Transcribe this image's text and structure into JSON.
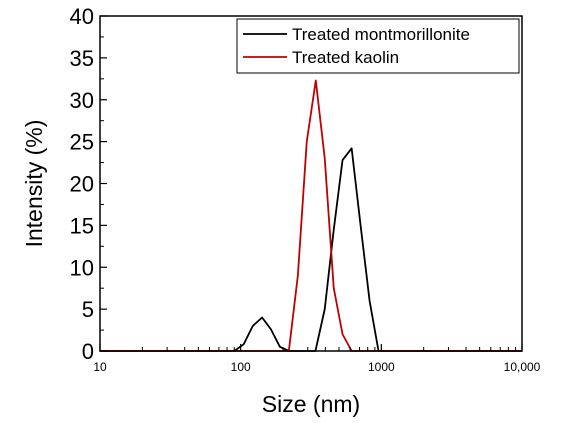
{
  "chart_data": {
    "type": "line",
    "title": "",
    "xlabel": "Size (nm)",
    "ylabel": "Intensity (%)",
    "x_scale": "log",
    "xlim": [
      10,
      10000
    ],
    "ylim": [
      0,
      40
    ],
    "x_ticks": [
      10,
      100,
      1000,
      10000
    ],
    "x_tick_labels": [
      "10",
      "100",
      "1000",
      "10,000"
    ],
    "y_ticks": [
      0,
      5,
      10,
      15,
      20,
      25,
      30,
      35,
      40
    ],
    "y_tick_labels": [
      "0",
      "5",
      "10",
      "15",
      "20",
      "25",
      "30",
      "35",
      "40"
    ],
    "grid": false,
    "legend_position": "top-right",
    "series": [
      {
        "name": "Treated montmorillonite",
        "color": "#000000",
        "points": [
          [
            10,
            0
          ],
          [
            90,
            0
          ],
          [
            105,
            0.8
          ],
          [
            122,
            3.0
          ],
          [
            142,
            4.0
          ],
          [
            164,
            2.6
          ],
          [
            190,
            0.5
          ],
          [
            220,
            0
          ],
          [
            340,
            0
          ],
          [
            396,
            5.0
          ],
          [
            459,
            14.5
          ],
          [
            530,
            22.8
          ],
          [
            615,
            24.2
          ],
          [
            712,
            15.0
          ],
          [
            825,
            6.0
          ],
          [
            955,
            0
          ],
          [
            10000,
            0
          ]
        ]
      },
      {
        "name": "Treated kaolin",
        "color": "#c00000",
        "points": [
          [
            10,
            0
          ],
          [
            220,
            0
          ],
          [
            255,
            9.0
          ],
          [
            295,
            25.0
          ],
          [
            342,
            32.3
          ],
          [
            396,
            23.0
          ],
          [
            459,
            7.5
          ],
          [
            530,
            2.0
          ],
          [
            615,
            0
          ],
          [
            10000,
            0
          ]
        ]
      }
    ]
  }
}
